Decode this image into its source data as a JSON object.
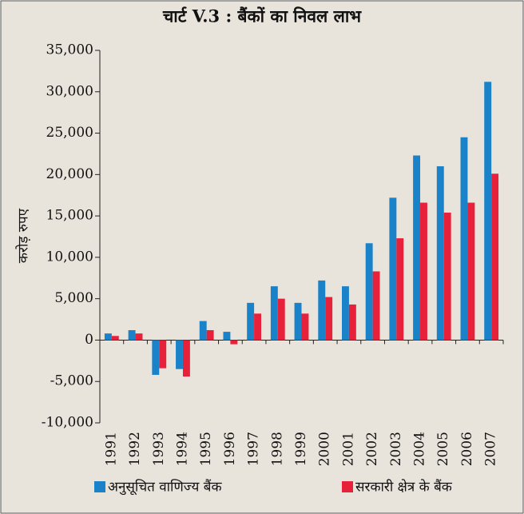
{
  "chart_data": {
    "type": "bar",
    "title": "चार्ट V.3 : बैंकों का निवल लाभ",
    "y_label": "करोड़ रुपए",
    "categories": [
      "1991",
      "1992",
      "1993",
      "1994",
      "1995",
      "1996",
      "1997",
      "1998",
      "1999",
      "2000",
      "2001",
      "2002",
      "2003",
      "2004",
      "2005",
      "2006",
      "2007"
    ],
    "series": [
      {
        "name": "अनुसूचित वाणिज्य बैंक",
        "color": "#1a82c8",
        "values": [
          800,
          1200,
          -4200,
          -3500,
          2300,
          1000,
          4500,
          6500,
          4500,
          7200,
          6500,
          11700,
          17200,
          22300,
          21000,
          24500,
          31200
        ]
      },
      {
        "name": "सरकारी क्षेत्र के बैंक",
        "color": "#e8213a",
        "values": [
          500,
          800,
          -3400,
          -4400,
          1200,
          -500,
          3200,
          5000,
          3200,
          5200,
          4300,
          8300,
          12300,
          16600,
          15400,
          16600,
          20100
        ]
      }
    ],
    "ylim": [
      -10000,
      35000
    ],
    "yticks": [
      {
        "value": -10000,
        "label": "-10,000"
      },
      {
        "value": -5000,
        "label": "-5,000"
      },
      0,
      {
        "value": 5000,
        "label": "5,000"
      },
      {
        "value": 10000,
        "label": "10,000"
      },
      {
        "value": 15000,
        "label": "15,000"
      },
      {
        "value": 20000,
        "label": "20,000"
      },
      {
        "value": 25000,
        "label": "25,000"
      },
      {
        "value": 30000,
        "label": "30,000"
      },
      {
        "value": 35000,
        "label": "35,000"
      }
    ],
    "legend": "bottom"
  }
}
